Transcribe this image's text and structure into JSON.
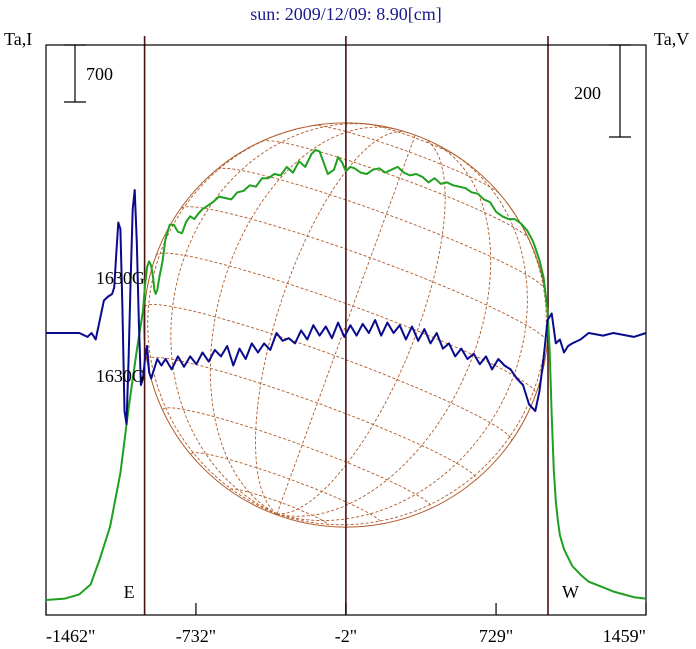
{
  "chart_data": {
    "type": "line",
    "title": "sun: 2009/12/09: 8.90[cm]",
    "y_left_label": "Ta,I",
    "y_right_label": "Ta,V",
    "scale_bar_left": "700",
    "scale_bar_right": "200",
    "x_ticks": [
      {
        "value": -1462,
        "label": "-1462\""
      },
      {
        "value": -732,
        "label": "-732\""
      },
      {
        "value": -2,
        "label": "-2\""
      },
      {
        "value": 729,
        "label": "729\""
      },
      {
        "value": 1459,
        "label": "1459\""
      }
    ],
    "xlim": [
      -1462,
      1459
    ],
    "limb_lines": [
      -982,
      -2,
      982
    ],
    "limb_labels": {
      "east": "E",
      "west": "W"
    },
    "field_labels": [
      {
        "text": "1630G",
        "x": -1100,
        "at": "above"
      },
      {
        "text": "1630G",
        "x": -1100,
        "at": "below"
      }
    ],
    "disk": {
      "center_x": -2,
      "radius": 982
    },
    "series": [
      {
        "color": "#1fa01f",
        "y_units": "Ta,I relative (0 = baseline)",
        "x": [
          -1462,
          -1370,
          -1300,
          -1245,
          -1200,
          -1150,
          -1100,
          -1060,
          -1020,
          -990,
          -980,
          -970,
          -960,
          -950,
          -940,
          -935,
          -928,
          -920,
          -910,
          -895,
          -880,
          -860,
          -840,
          -820,
          -800,
          -780,
          -760,
          -740,
          -720,
          -700,
          -680,
          -650,
          -620,
          -590,
          -560,
          -530,
          -500,
          -470,
          -440,
          -410,
          -380,
          -350,
          -320,
          -290,
          -260,
          -230,
          -200,
          -170,
          -150,
          -130,
          -110,
          -90,
          -60,
          -40,
          -20,
          -2,
          20,
          40,
          70,
          100,
          130,
          160,
          190,
          220,
          250,
          280,
          310,
          340,
          370,
          400,
          430,
          460,
          490,
          520,
          550,
          580,
          610,
          640,
          670,
          700,
          730,
          760,
          790,
          820,
          850,
          880,
          910,
          940,
          960,
          980,
          990,
          1000,
          1010,
          1020,
          1030,
          1040,
          1060,
          1080,
          1100,
          1140,
          1180,
          1250,
          1300,
          1350,
          1400,
          1459
        ],
        "y": [
          0,
          10,
          40,
          110,
          290,
          520,
          900,
          1360,
          1770,
          2050,
          2230,
          2360,
          2400,
          2370,
          2280,
          2200,
          2170,
          2200,
          2290,
          2400,
          2560,
          2660,
          2660,
          2610,
          2600,
          2680,
          2720,
          2700,
          2740,
          2770,
          2790,
          2820,
          2860,
          2850,
          2840,
          2890,
          2900,
          2940,
          2930,
          2990,
          2990,
          3020,
          3010,
          3070,
          3030,
          3110,
          3070,
          3160,
          3190,
          3180,
          3100,
          3020,
          3050,
          3140,
          3100,
          3040,
          3070,
          3060,
          3030,
          3020,
          3050,
          3060,
          3030,
          3050,
          3070,
          3030,
          3010,
          3020,
          3000,
          2960,
          2990,
          2950,
          2960,
          2940,
          2930,
          2920,
          2890,
          2880,
          2840,
          2820,
          2750,
          2720,
          2700,
          2700,
          2670,
          2620,
          2540,
          2410,
          2290,
          2050,
          1760,
          1310,
          920,
          700,
          560,
          460,
          360,
          300,
          240,
          180,
          130,
          90,
          60,
          40,
          20,
          10
        ]
      },
      {
        "color": "#0a0a8c",
        "y_units": "Ta,V relative (0 = baseline)",
        "x": [
          -1462,
          -1300,
          -1260,
          -1240,
          -1220,
          -1200,
          -1180,
          -1160,
          -1140,
          -1130,
          -1120,
          -1110,
          -1100,
          -1090,
          -1080,
          -1070,
          -1060,
          -1050,
          -1040,
          -1030,
          -1020,
          -1010,
          -1000,
          -990,
          -980,
          -970,
          -960,
          -950,
          -940,
          -920,
          -900,
          -880,
          -850,
          -820,
          -790,
          -760,
          -730,
          -700,
          -670,
          -640,
          -610,
          -580,
          -550,
          -520,
          -490,
          -460,
          -430,
          -400,
          -370,
          -340,
          -310,
          -280,
          -250,
          -220,
          -190,
          -160,
          -130,
          -100,
          -70,
          -40,
          -10,
          20,
          50,
          80,
          110,
          140,
          170,
          200,
          230,
          260,
          290,
          320,
          350,
          380,
          410,
          440,
          470,
          500,
          530,
          560,
          590,
          620,
          650,
          680,
          710,
          740,
          770,
          800,
          830,
          860,
          890,
          920,
          940,
          960,
          980,
          1000,
          1020,
          1040,
          1060,
          1080,
          1100,
          1140,
          1180,
          1250,
          1300,
          1400,
          1459
        ],
        "y": [
          0,
          0,
          -3,
          0,
          -5,
          10,
          25,
          28,
          30,
          35,
          60,
          85,
          80,
          20,
          -60,
          -70,
          -20,
          40,
          95,
          110,
          70,
          10,
          -40,
          -35,
          -20,
          -10,
          -30,
          -35,
          -30,
          -20,
          -25,
          -20,
          -28,
          -18,
          -26,
          -18,
          -24,
          -15,
          -22,
          -13,
          -18,
          -10,
          -25,
          -12,
          -20,
          -8,
          -15,
          -8,
          -13,
          0,
          -6,
          -4,
          -8,
          2,
          -5,
          6,
          -2,
          5,
          -4,
          8,
          -3,
          6,
          -2,
          7,
          0,
          10,
          -2,
          8,
          0,
          6,
          -5,
          5,
          -6,
          3,
          -8,
          0,
          -12,
          -8,
          -18,
          -12,
          -20,
          -16,
          -24,
          -18,
          -28,
          -20,
          -25,
          -28,
          -35,
          -40,
          -55,
          -60,
          -45,
          -20,
          10,
          15,
          -8,
          -5,
          -15,
          -10,
          -8,
          -5,
          0,
          -2,
          0,
          -3,
          0
        ]
      }
    ]
  }
}
